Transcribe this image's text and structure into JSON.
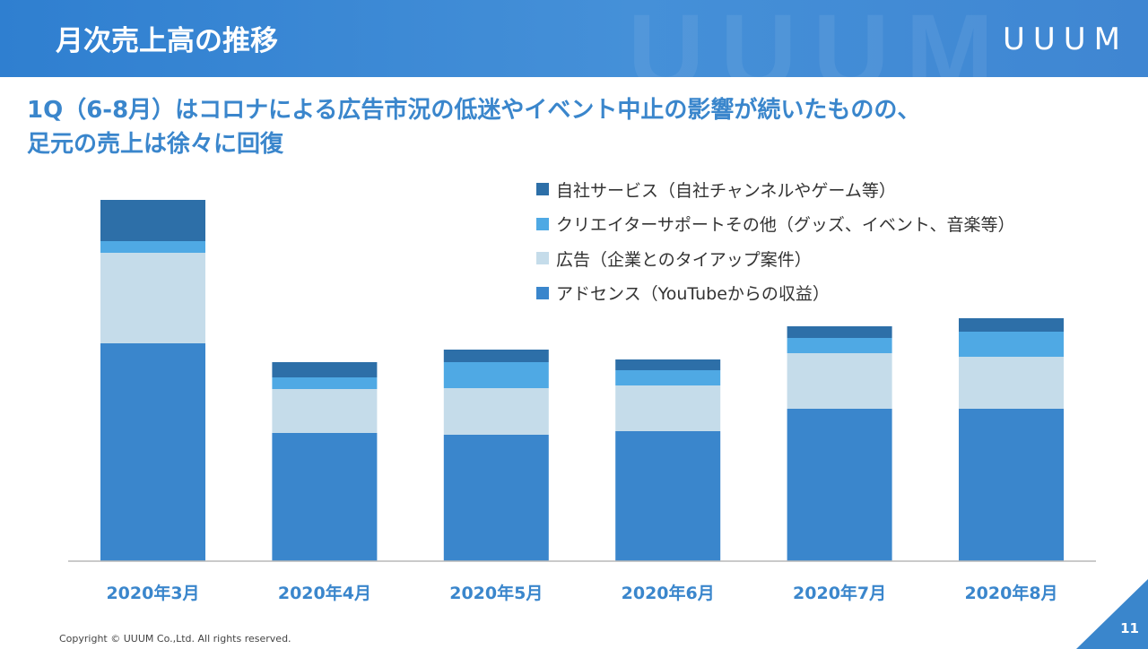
{
  "header": {
    "title": "月次売上高の推移",
    "logo": "UUUM",
    "watermark": "UUUM"
  },
  "subtitle": {
    "line1": "1Q（6-8月）はコロナによる広告市況の低迷やイベント中止の影響が続いたものの、",
    "line2": "足元の売上は徐々に回復"
  },
  "chart_data": {
    "type": "bar",
    "stacked": true,
    "categories": [
      "2020年3月",
      "2020年4月",
      "2020年5月",
      "2020年6月",
      "2020年7月",
      "2020年8月"
    ],
    "series": [
      {
        "name": "アドセンス（YouTubeからの収益）",
        "color": "#3a86cc",
        "values": [
          243,
          143,
          141,
          145,
          170,
          170
        ]
      },
      {
        "name": "広告（企業とのタイアップ案件）",
        "color": "#c5dcea",
        "values": [
          101,
          49,
          52,
          51,
          62,
          58
        ]
      },
      {
        "name": "クリエイターサポートその他（グッズ、イベント、音楽等）",
        "color": "#4fa9e4",
        "values": [
          13,
          13,
          29,
          17,
          17,
          28
        ]
      },
      {
        "name": "自社サービス（自社チャンネルやゲーム等）",
        "color": "#2d6fa8",
        "values": [
          46,
          17,
          14,
          12,
          13,
          15
        ]
      }
    ],
    "legend_order": [
      3,
      2,
      1,
      0
    ],
    "legend_position": "top-right",
    "ylim": [
      0,
      410
    ],
    "axes_visible": false
  },
  "footer": {
    "copyright": "Copyright © UUUM Co.,Ltd. All rights reserved.",
    "page_number": "11"
  }
}
